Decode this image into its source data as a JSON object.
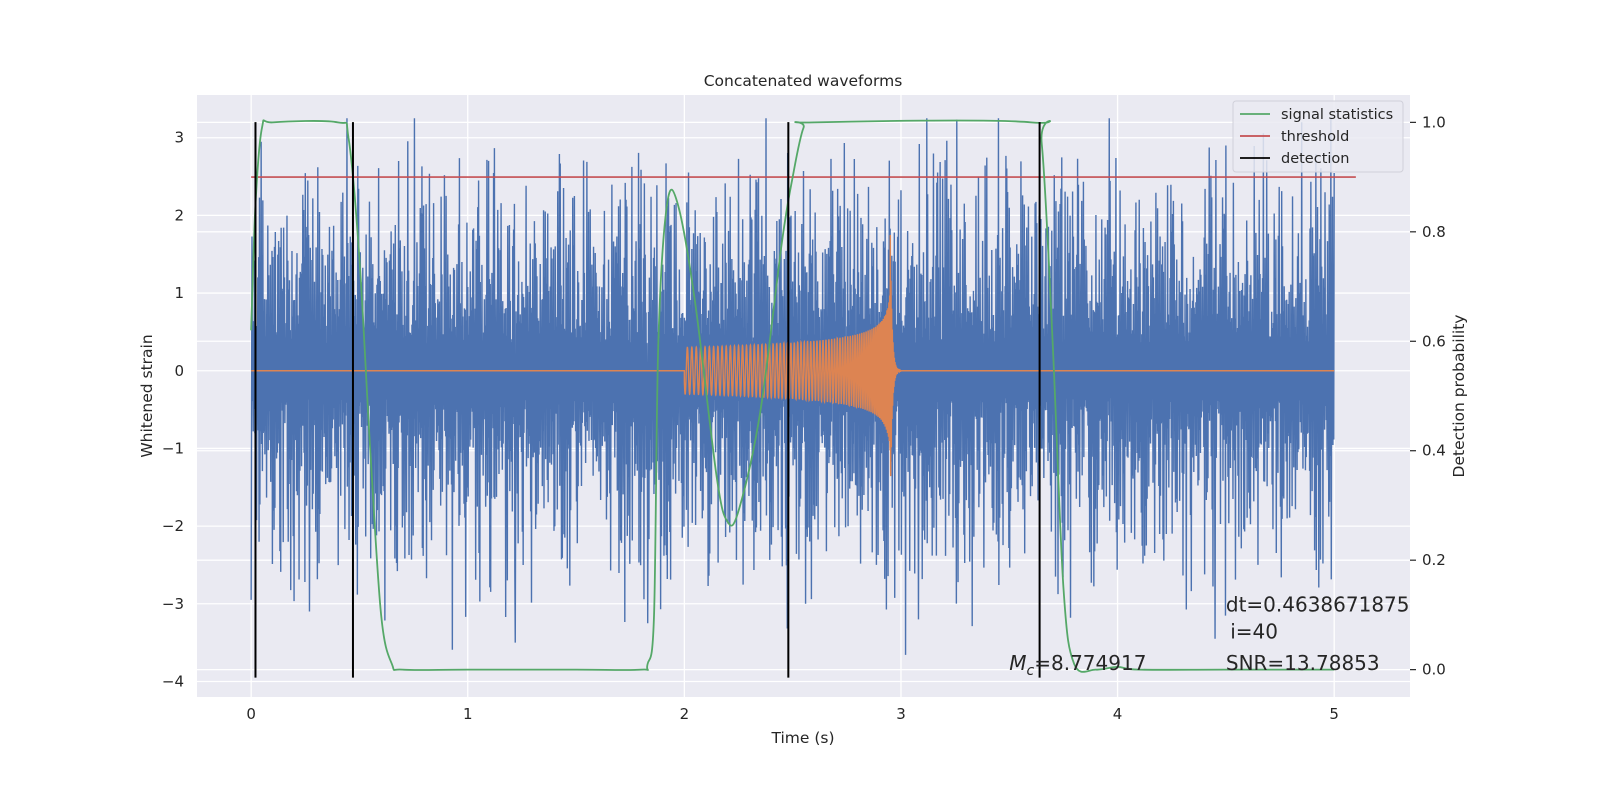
{
  "chart_data": {
    "type": "line",
    "title": "Concatenated waveforms",
    "xlabel": "Time (s)",
    "ylabel": "Whitened strain",
    "y2label": "Detection probability",
    "xlim": [
      -0.25,
      5.35
    ],
    "ylim": [
      -4.2,
      3.55
    ],
    "y2lim": [
      -0.05,
      1.05
    ],
    "xticks": [
      0,
      1,
      2,
      3,
      4,
      5
    ],
    "yticks": [
      -4,
      -3,
      -2,
      -1,
      0,
      1,
      2,
      3
    ],
    "y2ticks": [
      0.0,
      0.2,
      0.4,
      0.6,
      0.8,
      1.0
    ],
    "xtick_labels": [
      "0",
      "1",
      "2",
      "3",
      "4",
      "5"
    ],
    "ytick_labels": [
      "−4",
      "−3",
      "−2",
      "−1",
      "0",
      "1",
      "2",
      "3"
    ],
    "y2tick_labels": [
      "0.0",
      "0.2",
      "0.4",
      "0.6",
      "0.8",
      "1.0"
    ],
    "grid": true,
    "legend_position": "top-right",
    "colors": {
      "strain": "#4c72b0",
      "injection": "#dd8452",
      "statistic": "#55a868",
      "threshold": "#c44e52",
      "detection": "#000000",
      "background": "#eaeaf2",
      "grid": "#ffffff"
    },
    "series": [
      {
        "key": "strain",
        "axis": "left",
        "description_points": {
          "x_range": [
            0,
            5
          ],
          "typical_amplitude": 1.8,
          "max_excursions": [
            [
              0.0,
              -2.95
            ],
            [
              0.27,
              -3.1
            ],
            [
              0.68,
              2.7
            ],
            [
              1.22,
              -3.5
            ],
            [
              1.83,
              -3.25
            ],
            [
              2.56,
              -3.0
            ],
            [
              3.08,
              -3.2
            ],
            [
              3.12,
              3.25
            ],
            [
              4.45,
              -3.45
            ],
            [
              4.5,
              2.9
            ],
            [
              4.85,
              3.2
            ]
          ]
        }
      },
      {
        "key": "injection",
        "axis": "left",
        "chirp": {
          "t_start": 2.0,
          "t_merger": 2.95,
          "t_end": 3.0,
          "start_amp": 0.3,
          "peak_amp_pos": 1.95,
          "peak_amp_neg": -2.1
        }
      },
      {
        "name": "signal statistics",
        "axis": "right",
        "x": [
          0.0,
          0.02,
          0.05,
          0.1,
          0.4,
          0.45,
          0.5,
          0.55,
          0.6,
          0.65,
          0.7,
          1.0,
          1.5,
          1.8,
          1.83,
          1.86,
          1.88,
          1.92,
          1.97,
          2.05,
          2.15,
          2.2,
          2.25,
          2.35,
          2.45,
          2.5,
          2.55,
          2.6,
          3.6,
          3.65,
          3.7,
          3.75,
          3.8,
          3.9,
          4.0,
          4.1,
          4.5,
          5.0
        ],
        "y": [
          0.62,
          0.85,
          0.99,
          1.0,
          1.0,
          0.97,
          0.75,
          0.4,
          0.1,
          0.01,
          0.0,
          0.0,
          0.0,
          0.0,
          0.01,
          0.1,
          0.6,
          0.85,
          0.85,
          0.67,
          0.35,
          0.27,
          0.29,
          0.47,
          0.78,
          0.9,
          0.99,
          1.0,
          1.0,
          0.96,
          0.6,
          0.15,
          0.01,
          0.0,
          0.005,
          0.0,
          0.0,
          0.0
        ]
      },
      {
        "name": "threshold",
        "axis": "right",
        "x": [
          0.0,
          5.1
        ],
        "y": [
          0.9,
          0.9
        ]
      },
      {
        "name": "detection",
        "axis": "left",
        "x_positions": [
          0.02,
          0.47,
          2.48,
          3.64
        ],
        "y_range": [
          -3.95,
          3.2
        ]
      }
    ],
    "legend": [
      {
        "label": "signal statistics",
        "color": "#55a868"
      },
      {
        "label": "threshold",
        "color": "#c44e52"
      },
      {
        "label": "detection",
        "color": "#000000"
      }
    ],
    "annotations": {
      "mc_symbol": "M",
      "mc_sub": "c",
      "mc_value": "=8.774917",
      "mc_at": [
        3.5,
        -3.85
      ],
      "dt": "dt=0.4638671875",
      "dt_at": [
        4.5,
        -3.1
      ],
      "i": "i=40",
      "i_at": [
        4.52,
        -3.45
      ],
      "snr": "SNR=13.78853",
      "snr_at": [
        4.5,
        -3.85
      ]
    }
  }
}
